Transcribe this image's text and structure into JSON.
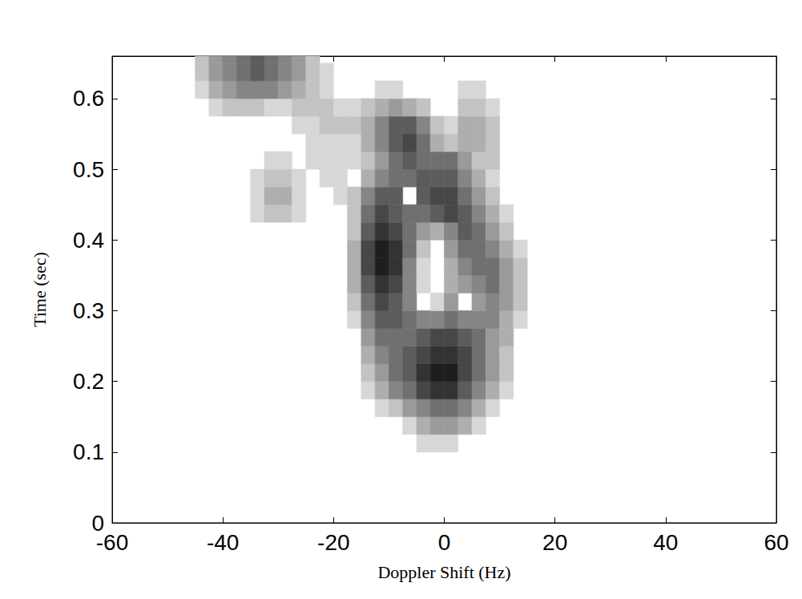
{
  "chart_data": {
    "type": "contour",
    "x_label": "Doppler Shift (Hz)",
    "y_label": "Time (sec)",
    "xlim": [
      -60,
      60
    ],
    "xticks": [
      -60,
      -40,
      -20,
      0,
      20,
      40,
      60
    ],
    "ylim": [
      0,
      0.66
    ],
    "yticks": [
      0,
      0.1,
      0.2,
      0.3,
      0.4,
      0.5,
      0.6
    ],
    "zlim": [
      0,
      10
    ],
    "color": "#1e1e1e",
    "cells": {
      "x": [
        -43.75,
        -41.25,
        -38.75,
        -36.25,
        -33.75,
        -31.25,
        -28.75,
        -26.25,
        -23.75,
        -21.25,
        -18.75,
        -16.25,
        -13.75,
        -11.25,
        -8.75,
        -6.25,
        -3.75,
        -1.25,
        1.25,
        3.75,
        6.25,
        8.75,
        11.25,
        13.75,
        16.25
      ],
      "y": [
        0.1125,
        0.1375,
        0.1625,
        0.1875,
        0.2125,
        0.2375,
        0.2625,
        0.2875,
        0.3125,
        0.3375,
        0.3625,
        0.3875,
        0.4125,
        0.4375,
        0.4625,
        0.4875,
        0.5125,
        0.5375,
        0.5625,
        0.5875,
        0.6125,
        0.6375,
        0.6625
      ],
      "z": [
        [
          0,
          0,
          0,
          0,
          0,
          0,
          0,
          0,
          0,
          0,
          0,
          0,
          0,
          0,
          0,
          0,
          1,
          1,
          1,
          0,
          0,
          0,
          0,
          0,
          0
        ],
        [
          0,
          0,
          0,
          0,
          0,
          0,
          0,
          0,
          0,
          0,
          0,
          0,
          0,
          0,
          0,
          1,
          3,
          4,
          4,
          3,
          1,
          0,
          0,
          0,
          0
        ],
        [
          0,
          0,
          0,
          0,
          0,
          0,
          0,
          0,
          0,
          0,
          0,
          0,
          0,
          1,
          2,
          4,
          5,
          6,
          6,
          5,
          3,
          1,
          0,
          0,
          0
        ],
        [
          0,
          0,
          0,
          0,
          0,
          0,
          0,
          0,
          0,
          0,
          0,
          0,
          1,
          3,
          5,
          6,
          8,
          9,
          9,
          7,
          5,
          3,
          1,
          0,
          0
        ],
        [
          0,
          0,
          0,
          0,
          0,
          0,
          0,
          0,
          0,
          0,
          0,
          0,
          2,
          4,
          6,
          7,
          9,
          10,
          10,
          8,
          6,
          4,
          2,
          0,
          0
        ],
        [
          0,
          0,
          0,
          0,
          0,
          0,
          0,
          0,
          0,
          0,
          0,
          0,
          3,
          5,
          6,
          7,
          8,
          9,
          9,
          8,
          6,
          4,
          2,
          0,
          0
        ],
        [
          0,
          0,
          0,
          0,
          0,
          0,
          0,
          0,
          0,
          0,
          0,
          0,
          4,
          6,
          6,
          6,
          7,
          8,
          8,
          7,
          6,
          4,
          3,
          0,
          0
        ],
        [
          0,
          0,
          0,
          0,
          0,
          0,
          0,
          0,
          0,
          0,
          0,
          1,
          5,
          7,
          7,
          6,
          5,
          5,
          6,
          5,
          5,
          5,
          3,
          1,
          0
        ],
        [
          0,
          0,
          0,
          0,
          0,
          0,
          0,
          0,
          0,
          0,
          0,
          2,
          6,
          8,
          7,
          5,
          0,
          1,
          4,
          0,
          4,
          5,
          4,
          2,
          0
        ],
        [
          0,
          0,
          0,
          0,
          0,
          0,
          0,
          0,
          0,
          0,
          0,
          3,
          7,
          9,
          8,
          5,
          1,
          0,
          3,
          4,
          5,
          6,
          4,
          2,
          0
        ],
        [
          0,
          0,
          0,
          0,
          0,
          0,
          0,
          0,
          0,
          0,
          0,
          3,
          8,
          10,
          9,
          5,
          1,
          0,
          3,
          5,
          6,
          6,
          4,
          2,
          0
        ],
        [
          0,
          0,
          0,
          0,
          0,
          0,
          0,
          0,
          0,
          0,
          0,
          3,
          8,
          10,
          9,
          6,
          2,
          0,
          4,
          6,
          6,
          5,
          3,
          1,
          0
        ],
        [
          0,
          0,
          0,
          0,
          0,
          0,
          0,
          0,
          0,
          0,
          0,
          2,
          7,
          9,
          8,
          6,
          4,
          3,
          5,
          7,
          6,
          4,
          2,
          0,
          0
        ],
        [
          0,
          0,
          0,
          0,
          1,
          2,
          2,
          1,
          0,
          0,
          0,
          2,
          6,
          8,
          7,
          6,
          6,
          7,
          8,
          7,
          5,
          3,
          1,
          0,
          0
        ],
        [
          0,
          0,
          0,
          0,
          1,
          3,
          3,
          1,
          0,
          0,
          1,
          2,
          5,
          7,
          7,
          0,
          7,
          8,
          8,
          6,
          4,
          2,
          0,
          0,
          0
        ],
        [
          0,
          0,
          0,
          0,
          1,
          2,
          2,
          1,
          0,
          1,
          1,
          0,
          3,
          5,
          6,
          6,
          7,
          7,
          7,
          5,
          3,
          1,
          0,
          0,
          0
        ],
        [
          0,
          0,
          0,
          0,
          0,
          1,
          1,
          0,
          1,
          1,
          1,
          1,
          2,
          4,
          6,
          7,
          6,
          6,
          6,
          4,
          2,
          2,
          0,
          0,
          0
        ],
        [
          0,
          0,
          0,
          0,
          0,
          0,
          0,
          0,
          1,
          1,
          1,
          1,
          3,
          5,
          7,
          8,
          6,
          3,
          2,
          3,
          3,
          2,
          0,
          0,
          0
        ],
        [
          0,
          0,
          0,
          0,
          0,
          0,
          0,
          1,
          1,
          2,
          2,
          2,
          3,
          5,
          7,
          7,
          5,
          2,
          1,
          3,
          3,
          2,
          0,
          0,
          0
        ],
        [
          0,
          1,
          2,
          2,
          2,
          1,
          1,
          2,
          2,
          2,
          1,
          1,
          2,
          3,
          4,
          3,
          2,
          0,
          0,
          2,
          2,
          1,
          0,
          0,
          0
        ],
        [
          1,
          3,
          4,
          5,
          5,
          5,
          4,
          3,
          2,
          1,
          0,
          0,
          0,
          1,
          1,
          0,
          0,
          0,
          0,
          1,
          1,
          0,
          0,
          0,
          0
        ],
        [
          2,
          4,
          5,
          6,
          7,
          6,
          5,
          4,
          2,
          1,
          0,
          0,
          0,
          0,
          0,
          0,
          0,
          0,
          0,
          0,
          0,
          0,
          0,
          0,
          0
        ],
        [
          2,
          4,
          5,
          6,
          7,
          6,
          5,
          4,
          2,
          0,
          0,
          0,
          0,
          0,
          0,
          0,
          0,
          0,
          0,
          0,
          0,
          0,
          0,
          0,
          0
        ]
      ]
    }
  }
}
